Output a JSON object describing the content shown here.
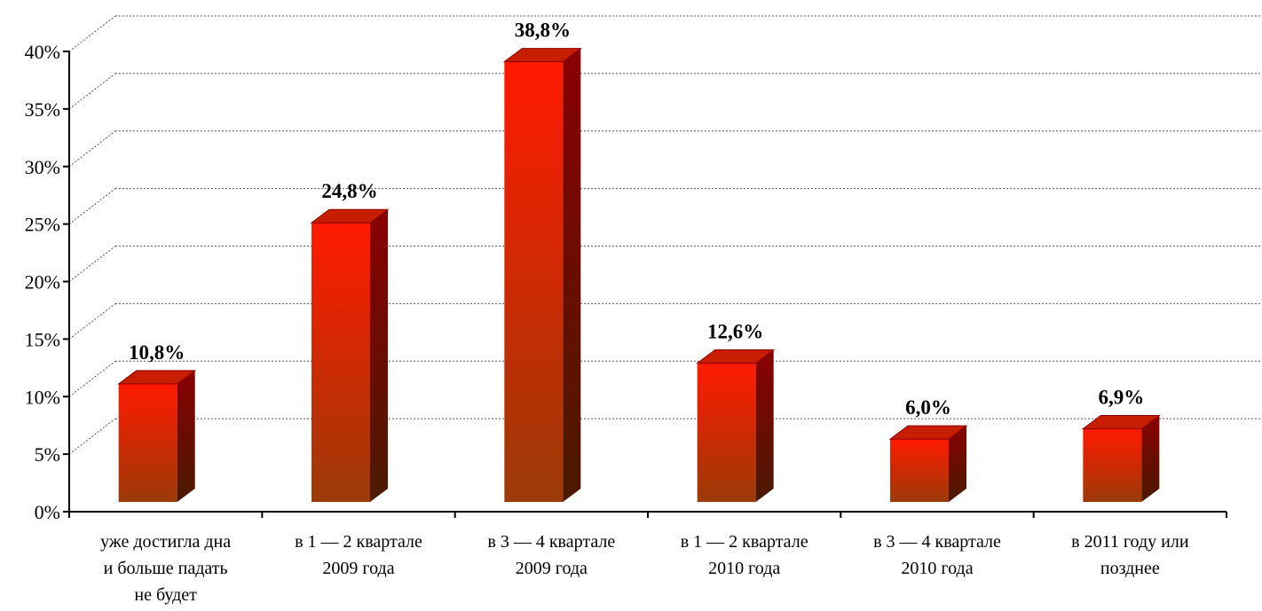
{
  "chart_data": {
    "type": "bar",
    "title": "",
    "xlabel": "",
    "ylabel": "",
    "ylim": [
      0,
      40
    ],
    "yticks": [
      "0%",
      "5%",
      "10%",
      "15%",
      "20%",
      "25%",
      "30%",
      "35%",
      "40%"
    ],
    "grid": true,
    "categories": [
      [
        "уже достигла дна",
        "и больше падать",
        "не будет"
      ],
      [
        "в 1 — 2 квартале",
        "2009 года"
      ],
      [
        "в 3 — 4 квартале",
        "2009 года"
      ],
      [
        "в 1 — 2 квартале",
        "2010 года"
      ],
      [
        "в 3 — 4 квартале",
        "2010 года"
      ],
      [
        "в 2011 году или",
        "позднее"
      ]
    ],
    "values": [
      10.8,
      24.8,
      38.8,
      12.6,
      6.0,
      6.9
    ],
    "data_labels": [
      "10,8%",
      "24,8%",
      "38,8%",
      "12,6%",
      "6,0%",
      "6,9%"
    ],
    "colors": {
      "bar_top": "#ff1a00",
      "bar_bottom": "#9b3a08",
      "bar_side": "#7a0000",
      "bar_cap": "#c81e00",
      "grid": "#555555",
      "axis": "#000000"
    }
  }
}
